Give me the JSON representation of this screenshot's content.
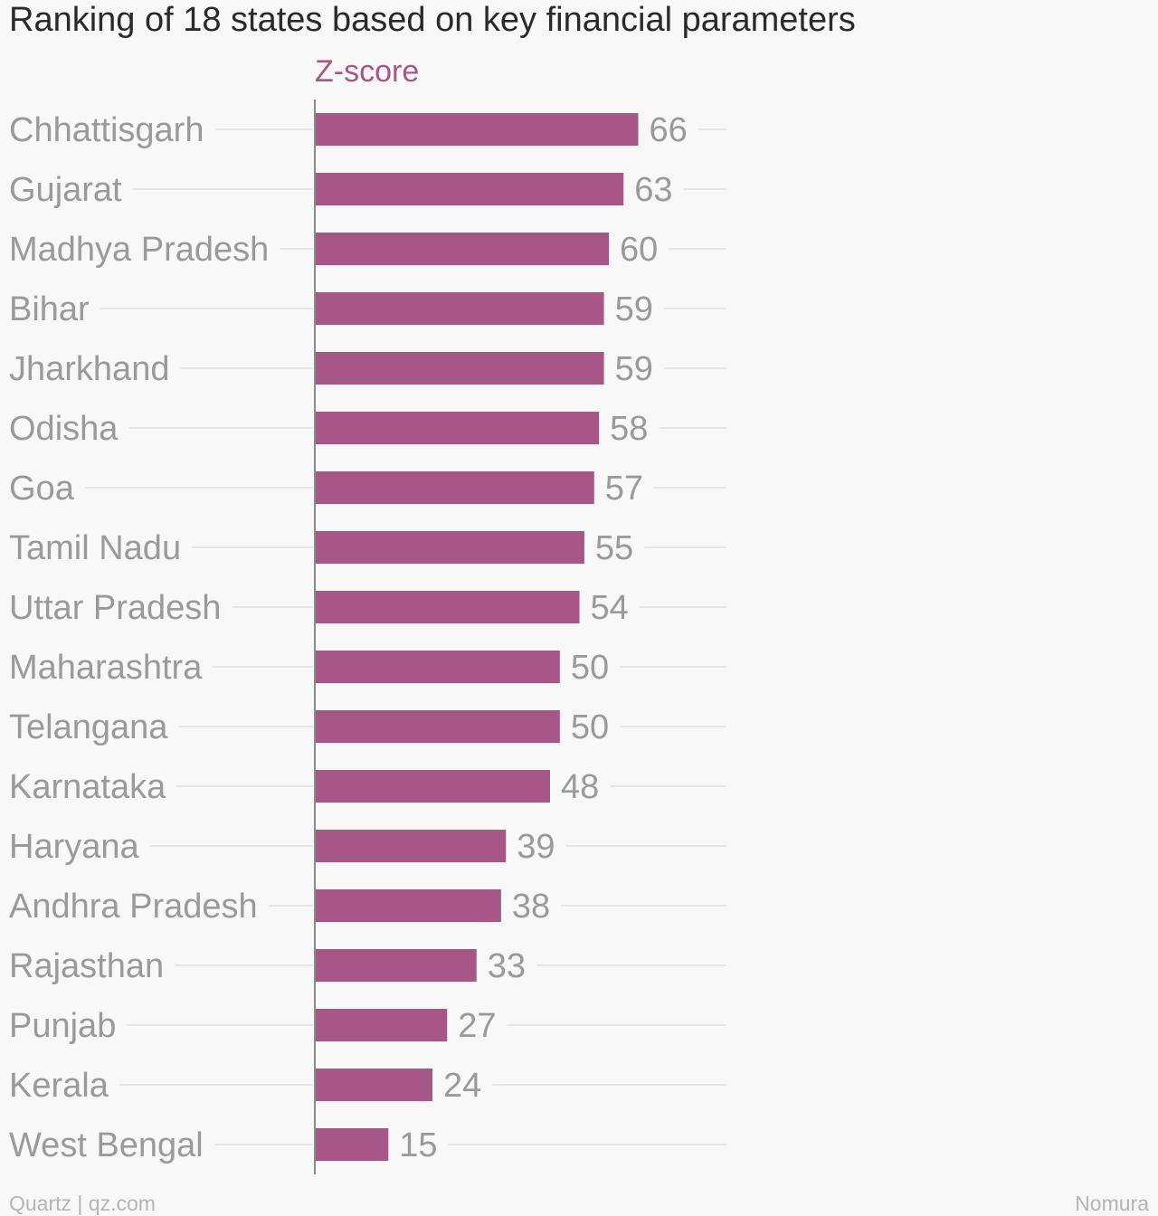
{
  "chart_data": {
    "type": "bar",
    "orientation": "horizontal",
    "title": "Ranking of 18 states based on key financial parameters",
    "series": [
      {
        "name": "Z-score",
        "values": [
          66,
          63,
          60,
          59,
          59,
          58,
          57,
          55,
          54,
          50,
          50,
          48,
          39,
          38,
          33,
          27,
          24,
          15
        ]
      }
    ],
    "categories": [
      "Chhattisgarh",
      "Gujarat",
      "Madhya Pradesh",
      "Bihar",
      "Jharkhand",
      "Odisha",
      "Goa",
      "Tamil Nadu",
      "Uttar Pradesh",
      "Maharashtra",
      "Telangana",
      "Karnataka",
      "Haryana",
      "Andhra Pradesh",
      "Rajasthan",
      "Punjab",
      "Kerala",
      "West Bengal"
    ],
    "xlim": [
      0,
      84
    ],
    "grid": true,
    "data_labels": true,
    "colors": {
      "bar": "#a85688",
      "series_label": "#a85688",
      "category_text": "#9a9a9a",
      "value_text": "#9a9a9a",
      "gridline": "#e6e6e6",
      "axis": "#8a8a8a"
    }
  },
  "footer": {
    "source_left": "Quartz | qz.com",
    "source_right": "Nomura"
  }
}
